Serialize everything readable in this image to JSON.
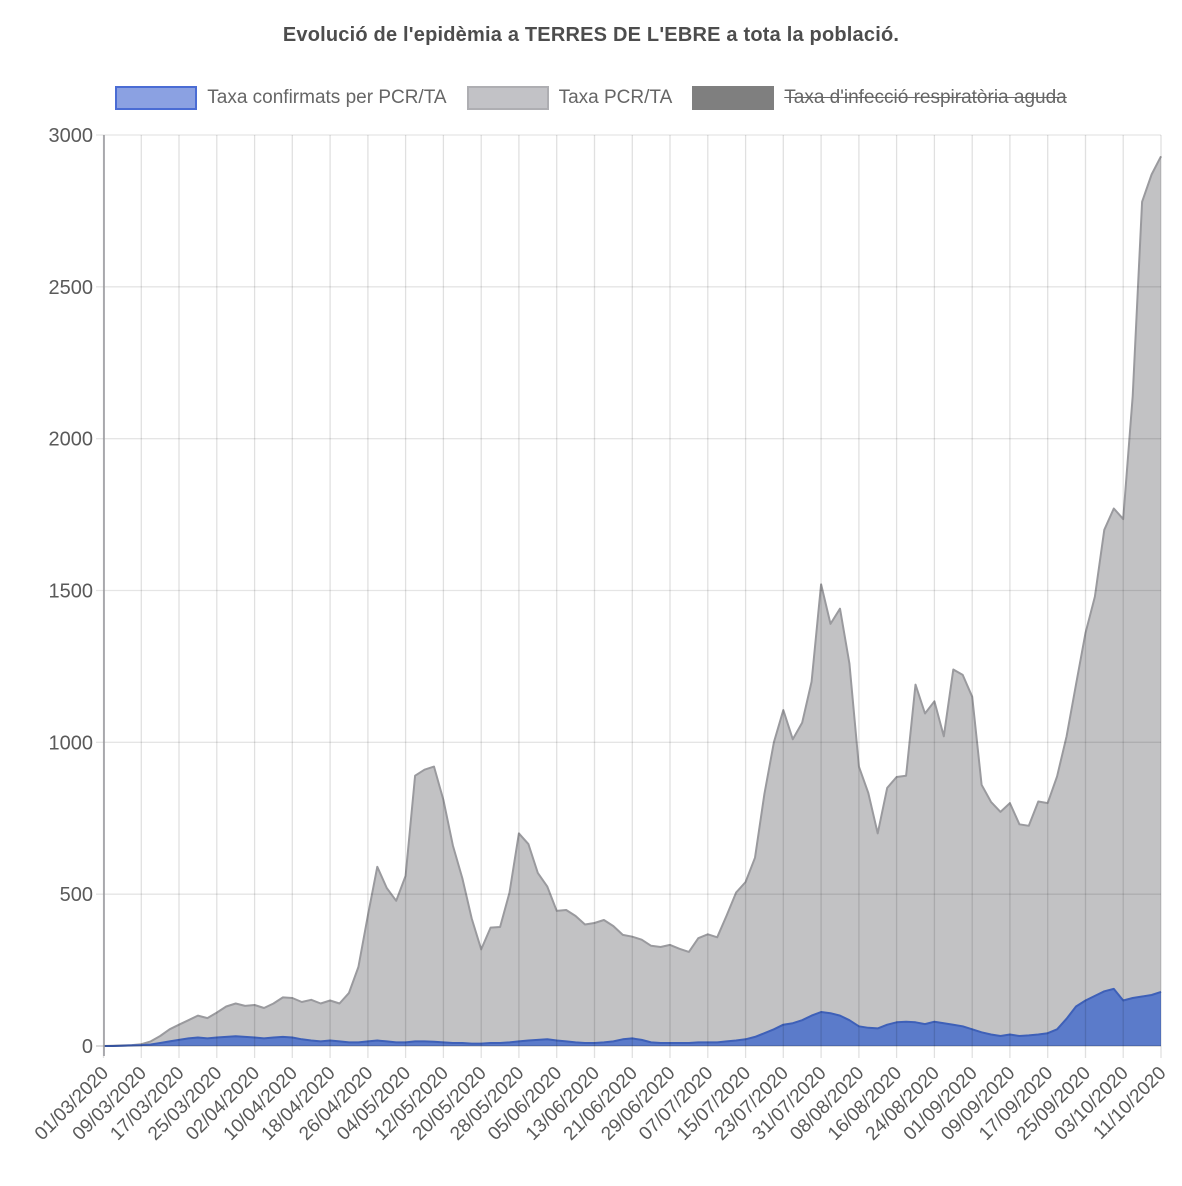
{
  "header": {
    "title": "Evolució de l'epidèmia a TERRES DE L'EBRE a tota la població."
  },
  "legend": {
    "position": "top",
    "text_color": "#666666",
    "items": [
      {
        "label": "Taxa confirmats per PCR/TA",
        "swatch_fill": "#8ba1e2",
        "swatch_border": "#4a6cd4",
        "disabled": false
      },
      {
        "label": "Taxa PCR/TA",
        "swatch_fill": "#c2c2c6",
        "swatch_border": "#aeaeb2",
        "disabled": false
      },
      {
        "label": "Taxa d'infecció respiratòria aguda",
        "swatch_fill": "#7f7f7f",
        "swatch_border": "#7f7f7f",
        "disabled": true
      }
    ]
  },
  "axes": {
    "y_ticks": [
      0,
      500,
      1000,
      1500,
      2000,
      2500,
      3000
    ],
    "tick_color": "#5a5a5a",
    "x_tick_labels": [
      "01/03/2020",
      "09/03/2020",
      "17/03/2020",
      "25/03/2020",
      "02/04/2020",
      "10/04/2020",
      "18/04/2020",
      "26/04/2020",
      "04/05/2020",
      "12/05/2020",
      "20/05/2020",
      "28/05/2020",
      "05/06/2020",
      "13/06/2020",
      "21/06/2020",
      "29/06/2020",
      "07/07/2020",
      "15/07/2020",
      "23/07/2020",
      "31/07/2020",
      "08/08/2020",
      "16/08/2020",
      "24/08/2020",
      "01/09/2020",
      "09/09/2020",
      "17/09/2020",
      "25/09/2020",
      "03/10/2020",
      "11/10/2020"
    ]
  },
  "chart_data": {
    "type": "area",
    "title": "Evolució de l'epidèmia a TERRES DE L'EBRE a tota la població.",
    "xlabel": "",
    "ylabel": "",
    "ylim": [
      0,
      3000
    ],
    "grid": true,
    "legend_position": "top",
    "x_start_date": "01/03/2020",
    "x_end_date": "11/10/2020",
    "x_total_days": 224,
    "sample_interval_days": 2,
    "x_tick_interval_days": 8,
    "x_tick_labels": [
      "01/03/2020",
      "09/03/2020",
      "17/03/2020",
      "25/03/2020",
      "02/04/2020",
      "10/04/2020",
      "18/04/2020",
      "26/04/2020",
      "04/05/2020",
      "12/05/2020",
      "20/05/2020",
      "28/05/2020",
      "05/06/2020",
      "13/06/2020",
      "21/06/2020",
      "29/06/2020",
      "07/07/2020",
      "15/07/2020",
      "23/07/2020",
      "31/07/2020",
      "08/08/2020",
      "16/08/2020",
      "24/08/2020",
      "01/09/2020",
      "09/09/2020",
      "17/09/2020",
      "25/09/2020",
      "03/10/2020",
      "11/10/2020"
    ],
    "series": [
      {
        "name": "Taxa PCR/TA",
        "fill": "#c2c2c4",
        "stroke": "#9a9a9e",
        "values": [
          0,
          1,
          2,
          3,
          6,
          15,
          33,
          55,
          70,
          85,
          100,
          92,
          110,
          130,
          140,
          132,
          135,
          125,
          140,
          160,
          158,
          145,
          152,
          140,
          150,
          140,
          175,
          260,
          430,
          590,
          520,
          478,
          560,
          890,
          910,
          920,
          810,
          660,
          553,
          420,
          318,
          390,
          392,
          505,
          700,
          665,
          570,
          525,
          445,
          448,
          428,
          400,
          405,
          415,
          395,
          366,
          360,
          350,
          330,
          326,
          333,
          320,
          310,
          355,
          368,
          358,
          430,
          505,
          540,
          620,
          830,
          1000,
          1106,
          1010,
          1065,
          1200,
          1520,
          1390,
          1440,
          1260,
          920,
          833,
          700,
          850,
          886,
          890,
          1190,
          1095,
          1135,
          1020,
          1240,
          1222,
          1150,
          860,
          804,
          771,
          800,
          730,
          725,
          805,
          800,
          888,
          1020,
          1190,
          1360,
          1480,
          1700,
          1770,
          1735,
          2140,
          2780,
          2870,
          2930
        ]
      },
      {
        "name": "Taxa confirmats per PCR/TA",
        "fill": "#5b7bca",
        "stroke": "#3e60b8",
        "values": [
          0,
          0,
          1,
          2,
          3,
          5,
          10,
          15,
          20,
          25,
          28,
          25,
          28,
          30,
          32,
          30,
          28,
          25,
          28,
          30,
          28,
          22,
          18,
          15,
          18,
          15,
          12,
          12,
          15,
          18,
          15,
          12,
          12,
          15,
          15,
          14,
          12,
          10,
          10,
          8,
          8,
          10,
          10,
          12,
          15,
          18,
          20,
          22,
          18,
          15,
          12,
          10,
          10,
          12,
          15,
          22,
          25,
          20,
          12,
          10,
          10,
          10,
          10,
          12,
          12,
          12,
          15,
          18,
          22,
          30,
          42,
          55,
          70,
          75,
          85,
          100,
          112,
          108,
          100,
          85,
          65,
          60,
          58,
          70,
          78,
          80,
          78,
          72,
          80,
          75,
          70,
          65,
          55,
          45,
          38,
          33,
          38,
          33,
          35,
          38,
          42,
          55,
          90,
          130,
          150,
          165,
          180,
          188,
          150,
          158,
          163,
          168,
          178
        ]
      },
      {
        "name": "Taxa d'infecció respiratòria aguda",
        "hidden": true,
        "values": []
      }
    ]
  }
}
